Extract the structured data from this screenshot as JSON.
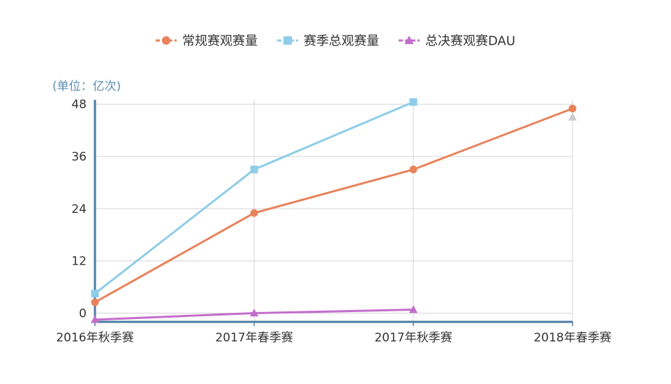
{
  "chart_data": {
    "type": "line",
    "categories": [
      "2016年秋季赛",
      "2017年春季赛",
      "2017年秋季赛",
      "2018年春季赛"
    ],
    "ylim": [
      -2,
      49
    ],
    "yticks": [
      0,
      12,
      24,
      36,
      48
    ],
    "unit_label": "(单位：亿次)",
    "grid": true,
    "legend_position": "top-center",
    "series": [
      {
        "name": "常规赛观赛量",
        "color": "#e8825a",
        "marker": "circle",
        "values": [
          2.5,
          23,
          33,
          47
        ]
      },
      {
        "name": "赛季总观赛量",
        "color": "#8ecde8",
        "marker": "square",
        "values": [
          4.5,
          33,
          48.5,
          null
        ]
      },
      {
        "name": "总决赛观赛DAU",
        "color": "#c36dcb",
        "marker": "triangle",
        "values": [
          -1.5,
          0,
          0.8,
          null
        ]
      }
    ],
    "extra_marker": {
      "category_index": 3,
      "value": 45,
      "color": "#cccccc",
      "marker": "triangle"
    }
  }
}
